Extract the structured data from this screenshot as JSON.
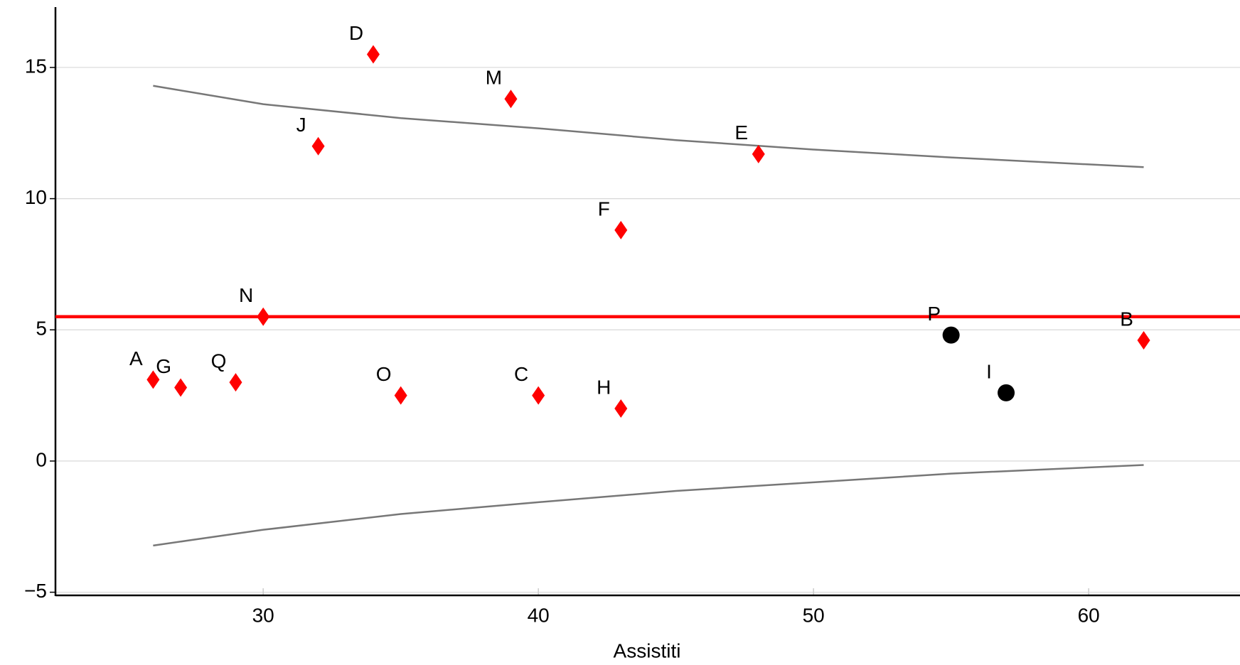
{
  "chart_data": {
    "type": "funnel",
    "x_label": "Assistiti",
    "xlim": [
      22.45,
      65.5
    ],
    "ylim": [
      -5.12,
      17.3
    ],
    "xticks": [
      30,
      40,
      50,
      60
    ],
    "yticks": [
      {
        "value": -5,
        "label": "−5"
      },
      0,
      5,
      10,
      15
    ],
    "grid": true,
    "mean": 5.5,
    "mean_color": "#ff0000",
    "limit_color": "#777777",
    "funnel_x": [
      26,
      30,
      35,
      40,
      45,
      50,
      55,
      62
    ],
    "funnel_upper": [
      14.3,
      13.6,
      13.07,
      12.68,
      12.23,
      11.87,
      11.57,
      11.2
    ],
    "funnel_lower": [
      -3.22,
      -2.62,
      -2.02,
      -1.57,
      -1.14,
      -0.81,
      -0.48,
      -0.15
    ],
    "points": [
      {
        "label": "A",
        "x": 26,
        "y": 3.1,
        "marker": "diamond",
        "color": "#ff0000"
      },
      {
        "label": "G",
        "x": 27,
        "y": 2.8,
        "marker": "diamond",
        "color": "#ff0000"
      },
      {
        "label": "Q",
        "x": 29,
        "y": 3.0,
        "marker": "diamond",
        "color": "#ff0000"
      },
      {
        "label": "N",
        "x": 30,
        "y": 5.5,
        "marker": "diamond",
        "color": "#ff0000"
      },
      {
        "label": "J",
        "x": 32,
        "y": 12.0,
        "marker": "diamond",
        "color": "#ff0000"
      },
      {
        "label": "D",
        "x": 34,
        "y": 15.5,
        "marker": "diamond",
        "color": "#ff0000"
      },
      {
        "label": "O",
        "x": 35,
        "y": 2.5,
        "marker": "diamond",
        "color": "#ff0000"
      },
      {
        "label": "M",
        "x": 39,
        "y": 13.8,
        "marker": "diamond",
        "color": "#ff0000"
      },
      {
        "label": "C",
        "x": 40,
        "y": 2.5,
        "marker": "diamond",
        "color": "#ff0000"
      },
      {
        "label": "F",
        "x": 43,
        "y": 8.8,
        "marker": "diamond",
        "color": "#ff0000"
      },
      {
        "label": "H",
        "x": 43,
        "y": 2.0,
        "marker": "diamond",
        "color": "#ff0000"
      },
      {
        "label": "E",
        "x": 48,
        "y": 11.7,
        "marker": "diamond",
        "color": "#ff0000"
      },
      {
        "label": "P",
        "x": 55,
        "y": 4.8,
        "marker": "circle",
        "color": "#000000"
      },
      {
        "label": "I",
        "x": 57,
        "y": 2.6,
        "marker": "circle",
        "color": "#000000"
      },
      {
        "label": "B",
        "x": 62,
        "y": 4.6,
        "marker": "diamond",
        "color": "#ff0000"
      }
    ]
  }
}
